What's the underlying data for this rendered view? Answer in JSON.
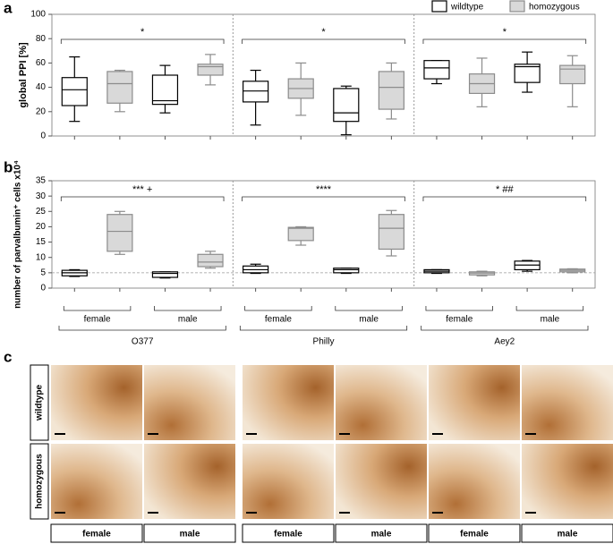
{
  "chart_data": [
    {
      "type": "box",
      "panel_label": "a",
      "ylabel": "global PPI [%]",
      "ylim": [
        0,
        100
      ],
      "yticks": [
        0,
        20,
        40,
        60,
        80,
        100
      ],
      "annotations": [
        "*",
        "*",
        "*"
      ],
      "series": [
        {
          "name": "wildtype",
          "color": "#ffffff",
          "stroke": "#000000",
          "boxes": [
            {
              "min": 12,
              "q1": 25,
              "median": 38,
              "q3": 48,
              "max": 65
            },
            {
              "min": 19,
              "q1": 26,
              "median": 29,
              "q3": 50,
              "max": 58
            },
            {
              "min": 9,
              "q1": 28,
              "median": 37,
              "q3": 45,
              "max": 54
            },
            {
              "min": 1,
              "q1": 12,
              "median": 19,
              "q3": 39,
              "max": 41
            },
            {
              "min": 43,
              "q1": 47,
              "median": 56,
              "q3": 62,
              "max": 62
            },
            {
              "min": 36,
              "q1": 44,
              "median": 57,
              "q3": 59,
              "max": 69
            }
          ]
        },
        {
          "name": "homozygous",
          "color": "#d9d9d9",
          "stroke": "#8c8c8c",
          "boxes": [
            {
              "min": 20,
              "q1": 27,
              "median": 43,
              "q3": 53,
              "max": 54
            },
            {
              "min": 42,
              "q1": 50,
              "median": 57,
              "q3": 59,
              "max": 67
            },
            {
              "min": 17,
              "q1": 31,
              "median": 39,
              "q3": 47,
              "max": 60
            },
            {
              "min": 14,
              "q1": 22,
              "median": 40,
              "q3": 53,
              "max": 60
            },
            {
              "min": 24,
              "q1": 35,
              "median": 43,
              "q3": 51,
              "max": 64
            },
            {
              "min": 24,
              "q1": 43,
              "median": 55,
              "q3": 58,
              "max": 66
            }
          ]
        }
      ]
    },
    {
      "type": "box",
      "panel_label": "b",
      "ylabel": "number of parvalbumin⁺ cells x10⁴",
      "ylim": [
        0,
        35
      ],
      "yticks": [
        0,
        5,
        10,
        15,
        20,
        25,
        30,
        35
      ],
      "reference_line": 5,
      "annotations": [
        "*** +",
        "****",
        "* ##"
      ],
      "groups": [
        {
          "name": "O377",
          "categories": [
            "female",
            "male"
          ]
        },
        {
          "name": "Philly",
          "categories": [
            "female",
            "male"
          ]
        },
        {
          "name": "Aey2",
          "categories": [
            "female",
            "male"
          ]
        }
      ],
      "series": [
        {
          "color": "#ffffff",
          "stroke": "#000000",
          "boxes": [
            {
              "min": 3.8,
              "q1": 4,
              "median": 5,
              "q3": 5.8,
              "max": 6
            },
            {
              "min": 3.3,
              "q1": 3.5,
              "median": 4.8,
              "q3": 5.3,
              "max": 5.3
            },
            {
              "min": 4.8,
              "q1": 5,
              "median": 6,
              "q3": 7.2,
              "max": 7.8
            },
            {
              "min": 4.8,
              "q1": 5,
              "median": 6,
              "q3": 6.5,
              "max": 6.5
            },
            {
              "min": 4.8,
              "q1": 5,
              "median": 5.5,
              "q3": 6,
              "max": 6
            },
            {
              "min": 5.5,
              "q1": 6,
              "median": 7.5,
              "q3": 8.8,
              "max": 9
            }
          ]
        },
        {
          "color": "#d9d9d9",
          "stroke": "#8c8c8c",
          "boxes": [
            {
              "min": 11,
              "q1": 12,
              "median": 18.5,
              "q3": 24,
              "max": 25
            },
            {
              "min": 6.5,
              "q1": 7,
              "median": 8.5,
              "q3": 11,
              "max": 12
            },
            {
              "min": 14,
              "q1": 15.5,
              "median": 19.5,
              "q3": 19.8,
              "max": 20
            },
            {
              "min": 10.5,
              "q1": 12.7,
              "median": 19.5,
              "q3": 24,
              "max": 25.3
            },
            {
              "min": 4,
              "q1": 4.3,
              "median": 4.9,
              "q3": 5.3,
              "max": 5.5
            },
            {
              "min": 5,
              "q1": 5.3,
              "median": 5.8,
              "q3": 6.2,
              "max": 6.3
            }
          ]
        }
      ]
    }
  ],
  "panel_c": {
    "label": "c",
    "rows": [
      "wildtype",
      "homozygous"
    ],
    "columns": [
      "female",
      "male",
      "female",
      "male",
      "female",
      "male"
    ]
  }
}
